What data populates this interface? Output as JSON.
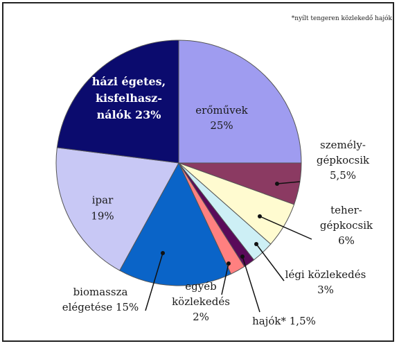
{
  "note": "*nyílt tengeren közlekedő hajók",
  "chart_data": {
    "type": "pie",
    "title": "",
    "slices": [
      {
        "label": [
          "erőművek",
          "25%"
        ],
        "value": 25,
        "color": "#9f9cf0"
      },
      {
        "label": [
          "személy-",
          "gépkocsik",
          "5,5%"
        ],
        "value": 5.5,
        "color": "#8b3a62"
      },
      {
        "label": [
          "teher-",
          "gépkocsik",
          "6%"
        ],
        "value": 6,
        "color": "#fffbd0"
      },
      {
        "label": [
          "légi közlekedés",
          "3%"
        ],
        "value": 3,
        "color": "#cdeff5"
      },
      {
        "label": [
          "hajók* 1,5%"
        ],
        "value": 1.5,
        "color": "#5a0a5a"
      },
      {
        "label": [
          "egyéb",
          "közlekedés",
          "2%"
        ],
        "value": 2,
        "color": "#ff8080"
      },
      {
        "label": [
          "biomassza",
          "elégetése 15%"
        ],
        "value": 15,
        "color": "#0a64c8"
      },
      {
        "label": [
          "ipar",
          "19%"
        ],
        "value": 19,
        "color": "#c8c8f5"
      },
      {
        "label": [
          "házi égetes,",
          "kisfelhasz-",
          "nálók 23%"
        ],
        "value": 23,
        "color": "#0b0b6e"
      }
    ]
  }
}
